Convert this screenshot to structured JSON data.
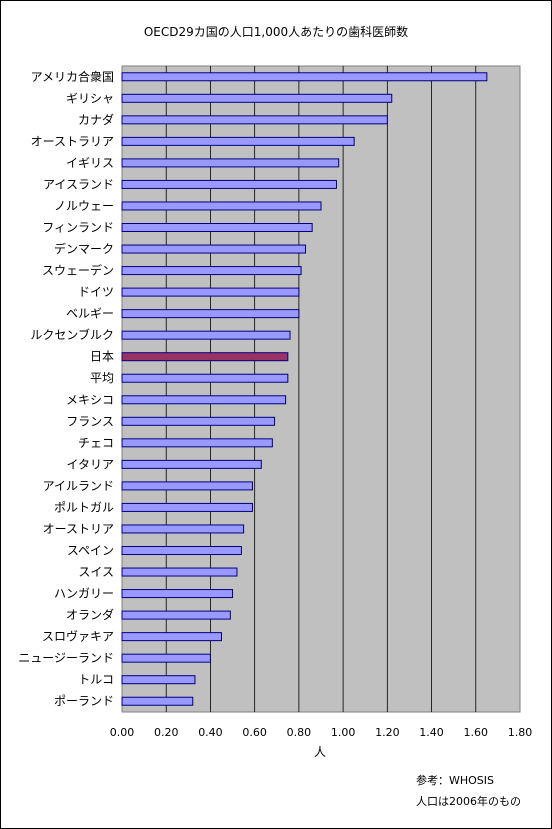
{
  "chart_data": {
    "type": "bar",
    "orientation": "horizontal",
    "title": "OECD29カ国の人口1,000人あたりの歯科医師数",
    "xlabel": "人",
    "ylabel": "",
    "xlim": [
      0,
      1.8
    ],
    "xticks": [
      "0.00",
      "0.20",
      "0.40",
      "0.60",
      "0.80",
      "1.00",
      "1.20",
      "1.40",
      "1.60",
      "1.80"
    ],
    "grid": true,
    "categories": [
      "アメリカ合衆国",
      "ギリシャ",
      "カナダ",
      "オーストラリア",
      "イギリス",
      "アイスランド",
      "ノルウェー",
      "フィンランド",
      "デンマーク",
      "スウェーデン",
      "ドイツ",
      "ベルギー",
      "ルクセンブルク",
      "日本",
      "平均",
      "メキシコ",
      "フランス",
      "チェコ",
      "イタリア",
      "アイルランド",
      "ポルトガル",
      "オーストリア",
      "スペイン",
      "スイス",
      "ハンガリー",
      "オランダ",
      "スロヴァキア",
      "ニュージーランド",
      "トルコ",
      "ポーランド"
    ],
    "values": [
      1.65,
      1.22,
      1.2,
      1.05,
      0.98,
      0.97,
      0.9,
      0.86,
      0.83,
      0.81,
      0.8,
      0.8,
      0.76,
      0.75,
      0.75,
      0.74,
      0.69,
      0.68,
      0.63,
      0.59,
      0.59,
      0.55,
      0.54,
      0.52,
      0.5,
      0.49,
      0.45,
      0.4,
      0.33,
      0.32
    ],
    "highlight_index": 13,
    "colors": {
      "bar": "#9999ff",
      "highlight": "#993366",
      "plot_bg": "#c0c0c0",
      "gridline": "#000000"
    }
  },
  "notes": {
    "source": "参考：WHOSIS",
    "year": "人口は2006年のもの"
  }
}
